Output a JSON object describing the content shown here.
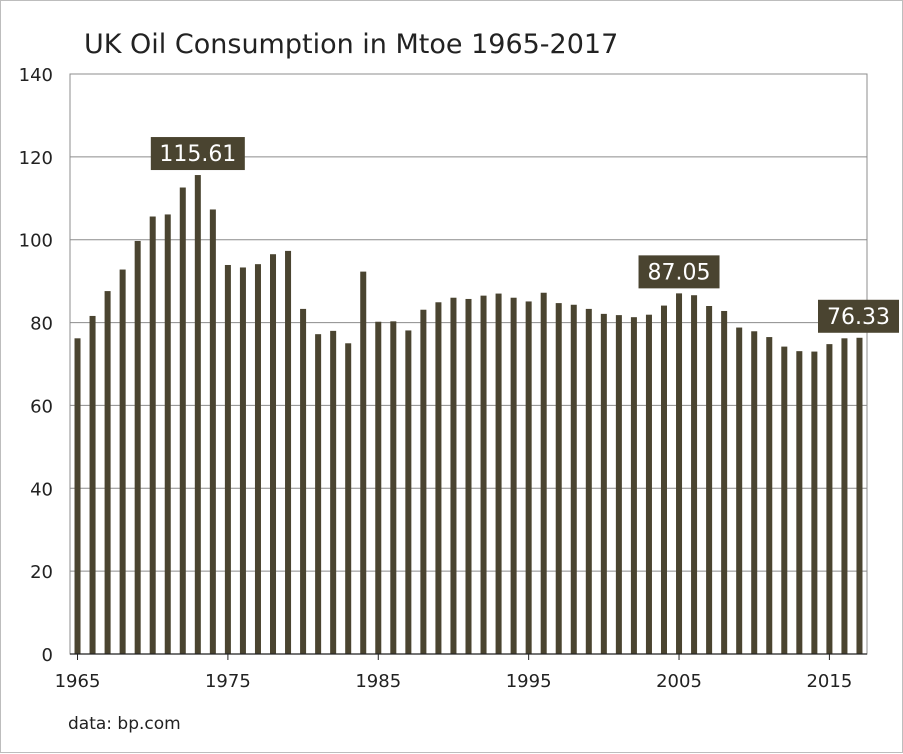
{
  "chart_data": {
    "type": "bar",
    "title": "UK Oil Consumption in Mtoe 1965-2017",
    "source": "data: bp.com",
    "xlabel": "",
    "ylabel": "",
    "ylim": [
      0,
      140
    ],
    "y_ticks": [
      "0",
      "20",
      "40",
      "60",
      "80",
      "100",
      "120",
      "140"
    ],
    "x_ticks": [
      "1965",
      "1975",
      "1985",
      "1995",
      "2005",
      "2015"
    ],
    "grid": true,
    "bar_color": "#4a4430",
    "categories": [
      "1965",
      "1966",
      "1967",
      "1968",
      "1969",
      "1970",
      "1971",
      "1972",
      "1973",
      "1974",
      "1975",
      "1976",
      "1977",
      "1978",
      "1979",
      "1980",
      "1981",
      "1982",
      "1983",
      "1984",
      "1985",
      "1986",
      "1987",
      "1988",
      "1989",
      "1990",
      "1991",
      "1992",
      "1993",
      "1994",
      "1995",
      "1996",
      "1997",
      "1998",
      "1999",
      "2000",
      "2001",
      "2002",
      "2003",
      "2004",
      "2005",
      "2006",
      "2007",
      "2008",
      "2009",
      "2010",
      "2011",
      "2012",
      "2013",
      "2014",
      "2015",
      "2016",
      "2017"
    ],
    "values": [
      76.2,
      81.6,
      87.6,
      92.8,
      99.7,
      105.6,
      106.1,
      112.6,
      115.61,
      107.3,
      93.9,
      93.3,
      94.1,
      96.5,
      97.3,
      83.3,
      77.2,
      78.0,
      75.0,
      92.3,
      80.2,
      80.3,
      78.1,
      83.1,
      84.9,
      86.0,
      85.7,
      86.5,
      87.0,
      86.0,
      85.1,
      87.2,
      84.7,
      84.3,
      83.3,
      82.1,
      81.8,
      81.3,
      81.9,
      84.1,
      87.05,
      86.6,
      84.0,
      82.8,
      78.8,
      77.9,
      76.5,
      74.2,
      73.1,
      73.0,
      74.8,
      76.2,
      76.33
    ],
    "annotations": [
      {
        "label": "115.61",
        "category": "1973"
      },
      {
        "label": "87.05",
        "category": "2005"
      },
      {
        "label": "76.33",
        "category": "2017"
      }
    ]
  }
}
